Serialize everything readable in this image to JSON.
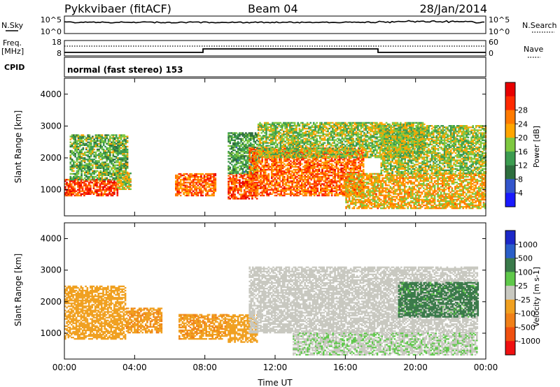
{
  "header": {
    "station": "Pykkvibaer (fitACF)",
    "beam": "Beam 04",
    "date": "28/Jan/2014"
  },
  "params": {
    "nsky_label": "N.Sky",
    "nsky_ticks": [
      "10^5",
      "10^0"
    ],
    "nsearch_label": "N.Search",
    "nsearch_ticks": [
      "10^5",
      "10^0"
    ],
    "freq_label": "Freq.",
    "freq_unit": "[MHz]",
    "freq_ticks": [
      "18",
      "8"
    ],
    "nave_label": "Nave",
    "nave_ticks": [
      "60",
      "0"
    ],
    "cpid_label": "CPID",
    "cpid_text": "normal (fast stereo) 153"
  },
  "colors": {
    "power": [
      "#1a1aff",
      "#3355cc",
      "#2e6e3e",
      "#3c9c50",
      "#7ec840",
      "#ffa500",
      "#ff7a00",
      "#ff2a00",
      "#e80000"
    ],
    "velocity": [
      "#1c28c8",
      "#2a5ec8",
      "#3a7a4a",
      "#5fc84a",
      "#c8c8c0",
      "#f0a020",
      "#f08018",
      "#f05010",
      "#f01010"
    ],
    "ground_scatter": "#c8c8c0"
  },
  "chart_data": [
    {
      "type": "heatmap",
      "panel": "power",
      "xlabel": "",
      "ylabel": "Slant Range [km]",
      "x_ticks": [
        "00:00",
        "04:00",
        "08:00",
        "12:00",
        "16:00",
        "20:00",
        "00:00"
      ],
      "x_range_hours": [
        0,
        24
      ],
      "y_ticks": [
        1000,
        2000,
        3000,
        4000
      ],
      "y_range_km": [
        180,
        4500
      ],
      "colorbar": {
        "label": "Power [dB]",
        "ticks": [
          "4",
          "8",
          "12",
          "16",
          "20",
          "24",
          "28"
        ],
        "range": [
          0,
          32
        ]
      },
      "echo_regions": [
        {
          "t": [
            0.0,
            3.0
          ],
          "r": [
            800,
            1300
          ],
          "level": 26
        },
        {
          "t": [
            0.3,
            3.6
          ],
          "r": [
            1300,
            2700
          ],
          "level": 14
        },
        {
          "t": [
            3.0,
            3.8
          ],
          "r": [
            1000,
            1500
          ],
          "level": 18
        },
        {
          "t": [
            6.3,
            8.6
          ],
          "r": [
            800,
            1500
          ],
          "level": 24
        },
        {
          "t": [
            9.3,
            11.0
          ],
          "r": [
            700,
            1500
          ],
          "level": 26
        },
        {
          "t": [
            9.3,
            11.0
          ],
          "r": [
            1500,
            2800
          ],
          "level": 12
        },
        {
          "t": [
            10.5,
            17.0
          ],
          "r": [
            800,
            2300
          ],
          "level": 24
        },
        {
          "t": [
            11.0,
            20.5
          ],
          "r": [
            2000,
            3100
          ],
          "level": 16
        },
        {
          "t": [
            16.0,
            24.0
          ],
          "r": [
            400,
            1500
          ],
          "level": 20
        },
        {
          "t": [
            18.0,
            24.0
          ],
          "r": [
            1500,
            3000
          ],
          "level": 16
        }
      ]
    },
    {
      "type": "heatmap",
      "panel": "velocity",
      "xlabel": "Time UT",
      "ylabel": "Slant Range [km]",
      "x_ticks": [
        "00:00",
        "04:00",
        "08:00",
        "12:00",
        "16:00",
        "20:00",
        "00:00"
      ],
      "x_range_hours": [
        0,
        24
      ],
      "y_ticks": [
        1000,
        2000,
        3000,
        4000
      ],
      "y_range_km": [
        180,
        4500
      ],
      "colorbar": {
        "label": "Velocity [m s-1]",
        "ticks": [
          "1000",
          "500",
          "100",
          "25",
          "-25",
          "-100",
          "-500",
          "-1000"
        ],
        "range": [
          -1000,
          1000
        ]
      },
      "echo_regions": [
        {
          "t": [
            0.0,
            3.5
          ],
          "r": [
            800,
            2500
          ],
          "level": -200
        },
        {
          "t": [
            3.5,
            5.5
          ],
          "r": [
            1000,
            1800
          ],
          "level": -300
        },
        {
          "t": [
            6.5,
            9.2
          ],
          "r": [
            800,
            1600
          ],
          "level": -300
        },
        {
          "t": [
            9.3,
            11.0
          ],
          "r": [
            700,
            1600
          ],
          "level": -250
        },
        {
          "t": [
            10.5,
            23.5
          ],
          "r": [
            1000,
            3100
          ],
          "level": 0
        },
        {
          "t": [
            13.0,
            23.5
          ],
          "r": [
            300,
            1000
          ],
          "level": 80
        },
        {
          "t": [
            19.0,
            23.5
          ],
          "r": [
            1500,
            2600
          ],
          "level": 400
        }
      ]
    }
  ]
}
